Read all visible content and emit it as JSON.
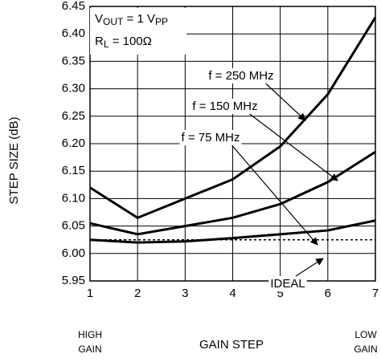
{
  "chart_data": {
    "type": "line",
    "x": [
      1,
      2,
      3,
      4,
      5,
      6,
      7
    ],
    "xlim": [
      1,
      7
    ],
    "xticks": [
      1,
      2,
      3,
      4,
      5,
      6,
      7
    ],
    "ylim": [
      5.95,
      6.45
    ],
    "yticks": [
      5.95,
      {
        "value": 6.0,
        "label": "6.00"
      },
      6.05,
      {
        "value": 6.1,
        "label": "6.10"
      },
      6.15,
      {
        "value": 6.2,
        "label": "6.20"
      },
      6.25,
      {
        "value": 6.3,
        "label": "6.30"
      },
      6.35,
      {
        "value": 6.4,
        "label": "6.40"
      },
      6.45
    ],
    "grid": true,
    "y_label": "STEP SIZE (dB)",
    "x_label": "GAIN STEP",
    "x_left_note": [
      "HIGH",
      "GAIN"
    ],
    "x_right_note": [
      "LOW",
      "GAIN"
    ],
    "conditions": {
      "vout": [
        "V",
        "OUT",
        " = 1 V",
        "PP"
      ],
      "rl": [
        "R",
        "L",
        " = 100Ω"
      ]
    },
    "series": [
      {
        "name": "f = 250 MHz",
        "color": "#000000",
        "values": [
          6.12,
          6.065,
          6.1,
          6.135,
          6.195,
          6.29,
          6.43
        ]
      },
      {
        "name": "f = 150 MHz",
        "color": "#000000",
        "values": [
          6.055,
          6.035,
          6.05,
          6.065,
          6.09,
          6.13,
          6.185
        ]
      },
      {
        "name": "f = 75 MHz",
        "color": "#000000",
        "values": [
          6.025,
          6.02,
          6.022,
          6.028,
          6.035,
          6.042,
          6.06
        ]
      },
      {
        "name": "IDEAL",
        "color": "#000000",
        "dashed": true,
        "values": [
          6.025,
          6.025,
          6.025,
          6.025,
          6.025,
          6.025,
          6.025
        ]
      }
    ]
  }
}
